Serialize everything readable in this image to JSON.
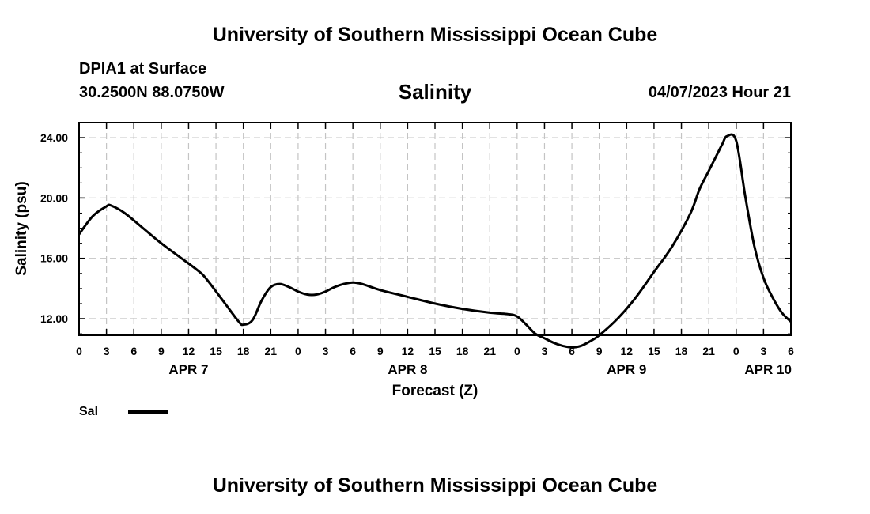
{
  "header": {
    "title": "University of Southern Mississippi Ocean Cube",
    "station": "DPIA1 at Surface",
    "location": "30.2500N  88.0750W",
    "timestamp": "04/07/2023 Hour 21"
  },
  "footer": {
    "title": "University of Southern Mississippi Ocean Cube"
  },
  "chart_data": {
    "type": "line",
    "title": "Salinity",
    "xlabel": "Forecast (Z)",
    "ylabel": "Salinity (psu)",
    "ylim": [
      10.9,
      25.0
    ],
    "xlim": [
      0,
      78
    ],
    "x_unit": "hours since APR 7 00Z",
    "grid": true,
    "x_ticks": [
      {
        "x": 0,
        "label": "0"
      },
      {
        "x": 3,
        "label": "3"
      },
      {
        "x": 6,
        "label": "6"
      },
      {
        "x": 9,
        "label": "9"
      },
      {
        "x": 12,
        "label": "12"
      },
      {
        "x": 15,
        "label": "15"
      },
      {
        "x": 18,
        "label": "18"
      },
      {
        "x": 21,
        "label": "21"
      },
      {
        "x": 24,
        "label": "0"
      },
      {
        "x": 27,
        "label": "3"
      },
      {
        "x": 30,
        "label": "6"
      },
      {
        "x": 33,
        "label": "9"
      },
      {
        "x": 36,
        "label": "12"
      },
      {
        "x": 39,
        "label": "15"
      },
      {
        "x": 42,
        "label": "18"
      },
      {
        "x": 45,
        "label": "21"
      },
      {
        "x": 48,
        "label": "0"
      },
      {
        "x": 51,
        "label": "3"
      },
      {
        "x": 54,
        "label": "6"
      },
      {
        "x": 57,
        "label": "9"
      },
      {
        "x": 60,
        "label": "12"
      },
      {
        "x": 63,
        "label": "15"
      },
      {
        "x": 66,
        "label": "18"
      },
      {
        "x": 69,
        "label": "21"
      },
      {
        "x": 72,
        "label": "0"
      },
      {
        "x": 75,
        "label": "3"
      },
      {
        "x": 78,
        "label": "6"
      }
    ],
    "day_labels": [
      {
        "x": 12,
        "label": "APR 7"
      },
      {
        "x": 36,
        "label": "APR 8"
      },
      {
        "x": 60,
        "label": "APR 9"
      },
      {
        "x": 75.5,
        "label": "APR 10"
      }
    ],
    "y_ticks": [
      {
        "y": 12,
        "label": "12.00"
      },
      {
        "y": 16,
        "label": "16.00"
      },
      {
        "y": 20,
        "label": "20.00"
      },
      {
        "y": 24,
        "label": "24.00"
      }
    ],
    "legend": {
      "label": "Sal",
      "position": "bottom-left"
    },
    "series": [
      {
        "name": "Sal",
        "x": [
          0,
          1.5,
          3,
          3.5,
          5,
          7,
          9,
          11,
          13,
          14,
          16,
          17.5,
          18,
          19,
          20,
          21,
          22,
          23,
          24,
          25,
          26,
          27,
          28,
          29,
          30,
          31,
          33,
          36,
          39,
          42,
          45,
          47,
          48,
          49,
          50,
          51,
          52,
          53,
          54,
          55,
          56,
          57,
          59,
          61,
          63,
          65,
          67,
          68,
          69,
          70,
          70.5,
          71,
          72,
          73,
          74,
          75,
          76,
          77,
          78
        ],
        "values": [
          17.6,
          18.8,
          19.45,
          19.5,
          19.0,
          18.0,
          17.0,
          16.1,
          15.2,
          14.6,
          13.0,
          11.8,
          11.6,
          11.9,
          13.2,
          14.1,
          14.3,
          14.1,
          13.8,
          13.6,
          13.6,
          13.8,
          14.1,
          14.3,
          14.4,
          14.3,
          13.9,
          13.45,
          13.0,
          12.65,
          12.4,
          12.3,
          12.15,
          11.6,
          11.0,
          10.7,
          10.4,
          10.2,
          10.1,
          10.2,
          10.5,
          10.9,
          12.0,
          13.4,
          15.1,
          16.8,
          19.0,
          20.6,
          21.8,
          23.0,
          23.6,
          24.1,
          23.8,
          20.1,
          16.8,
          14.7,
          13.4,
          12.4,
          11.8
        ]
      }
    ]
  }
}
